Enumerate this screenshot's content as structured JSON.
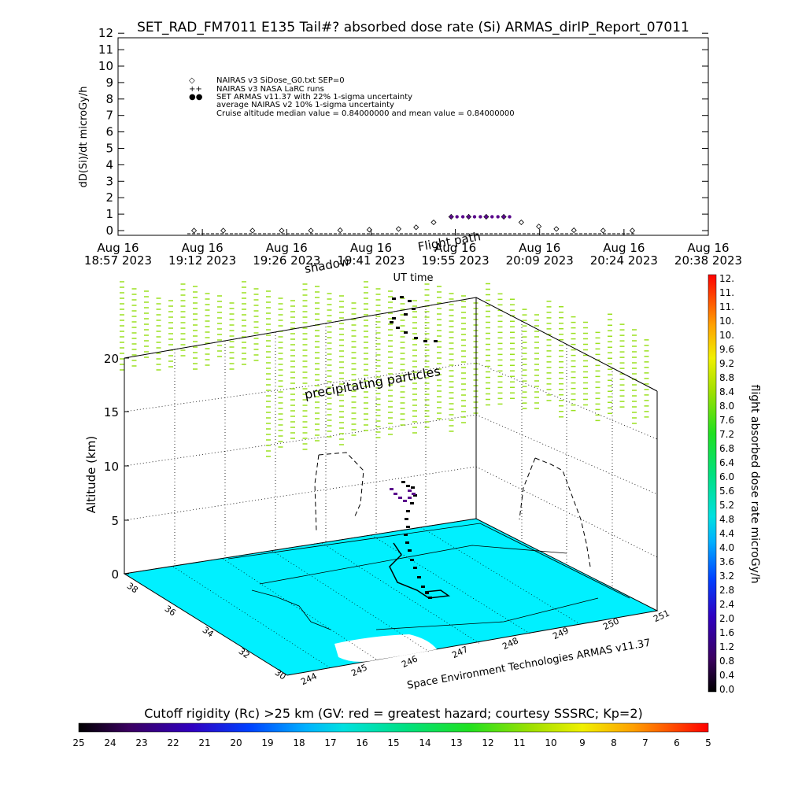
{
  "top_chart": {
    "title": "SET_RAD_FM7011  E135 Tail#? absorbed dose rate (Si) ARMAS_dirIP_Report_07011",
    "ylabel": "dD(Si)/dt microGy/h",
    "xlabel": "UT time",
    "y_ticks": [
      "0",
      "1",
      "2",
      "3",
      "4",
      "5",
      "6",
      "7",
      "8",
      "9",
      "10",
      "11",
      "12"
    ],
    "x_ticks": [
      {
        "date": "Aug 16",
        "time": "18:57 2023"
      },
      {
        "date": "Aug 16",
        "time": "19:12 2023"
      },
      {
        "date": "Aug 16",
        "time": "19:26 2023"
      },
      {
        "date": "Aug 16",
        "time": "19:41 2023"
      },
      {
        "date": "Aug 16",
        "time": "19:55 2023"
      },
      {
        "date": "Aug 16",
        "time": "20:09 2023"
      },
      {
        "date": "Aug 16",
        "time": "20:24 2023"
      },
      {
        "date": "Aug 16",
        "time": "20:38 2023"
      }
    ],
    "legend": [
      {
        "symbol": "◇",
        "text": "NAIRAS v3 SiDose_G0.txt SEP=0"
      },
      {
        "symbol": "++",
        "text": "NAIRAS v3 NASA LaRC runs"
      },
      {
        "symbol": "●●",
        "text": "SET ARMAS v11.37 with 22% 1-sigma uncertainty"
      },
      {
        "symbol": "",
        "text": "average NAIRAS v2 10% 1-sigma uncertainty"
      },
      {
        "symbol": "",
        "text": "Cruise altitude median value = 0.84000000 and mean value = 0.84000000"
      }
    ],
    "overlay_labels": [
      "Flight path",
      "shadow"
    ]
  },
  "chart_data": [
    {
      "type": "scatter",
      "title": "SET_RAD_FM7011  E135 Tail#? absorbed dose rate (Si) ARMAS_dirIP_Report_07011",
      "xlabel": "UT time",
      "ylabel": "dD(Si)/dt microGy/h",
      "xlim": [
        "18:57",
        "20:38"
      ],
      "ylim": [
        0,
        12
      ],
      "series": [
        {
          "name": "NAIRAS v3 SiDose_G0.txt SEP=0",
          "x": [
            "19:10",
            "19:15",
            "19:20",
            "19:25",
            "19:30",
            "19:35",
            "19:40",
            "19:45",
            "19:48",
            "19:51",
            "19:54",
            "19:57",
            "20:00",
            "20:03",
            "20:06",
            "20:09",
            "20:12",
            "20:15",
            "20:20",
            "20:25"
          ],
          "y": [
            0.0,
            0.0,
            0.0,
            0.0,
            0.0,
            0.02,
            0.05,
            0.1,
            0.2,
            0.5,
            0.84,
            0.84,
            0.84,
            0.84,
            0.5,
            0.25,
            0.1,
            0.02,
            0.0,
            0.0
          ]
        },
        {
          "name": "SET ARMAS v11.37 with 22% 1-sigma uncertainty",
          "x": [
            "19:54",
            "19:55",
            "19:56",
            "19:57",
            "19:58",
            "19:59",
            "20:00",
            "20:01",
            "20:02",
            "20:03",
            "20:04"
          ],
          "y": [
            0.84,
            0.84,
            0.84,
            0.84,
            0.84,
            0.84,
            0.84,
            0.84,
            0.84,
            0.84,
            0.84
          ]
        }
      ]
    },
    {
      "type": "scatter",
      "xlabel": "",
      "ylabel": "Altitude (km)",
      "zlabel": "flight absorbed dose rate microGy/h",
      "z_ticks": [
        "0",
        "5",
        "10",
        "15",
        "20"
      ],
      "lon_ticks": [
        "244",
        "245",
        "246",
        "247",
        "248",
        "249",
        "250",
        "251"
      ],
      "lat_ticks": [
        "30",
        "32",
        "34",
        "36",
        "38"
      ],
      "annotation": "precipitating particles",
      "credit": "Space Environment Technologies ARMAS v11.37"
    }
  ],
  "colorbar_right": {
    "label": "flight absorbed dose rate microGy/h",
    "ticks": [
      "0.0",
      "0.4",
      "0.8",
      "1.2",
      "1.6",
      "2.0",
      "2.4",
      "2.8",
      "3.2",
      "3.6",
      "4.0",
      "4.4",
      "4.8",
      "5.2",
      "5.6",
      "6.0",
      "6.4",
      "6.8",
      "7.2",
      "7.6",
      "8.0",
      "8.4",
      "8.8",
      "9.2",
      "9.6",
      "10.",
      "10.",
      "11.",
      "11.",
      "12."
    ]
  },
  "colorbar_bottom": {
    "label": "Cutoff rigidity (Rc) >25 km (GV: red = greatest hazard; courtesy SSSRC; Kp=2)",
    "ticks": [
      "25",
      "24",
      "23",
      "22",
      "21",
      "20",
      "19",
      "18",
      "17",
      "16",
      "15",
      "14",
      "13",
      "12",
      "11",
      "10",
      "9",
      "8",
      "7",
      "6",
      "5"
    ]
  },
  "colors": {
    "map_fill": "#00f0ff",
    "armas_points": "#5a0a8c",
    "particles": "#9be020"
  }
}
